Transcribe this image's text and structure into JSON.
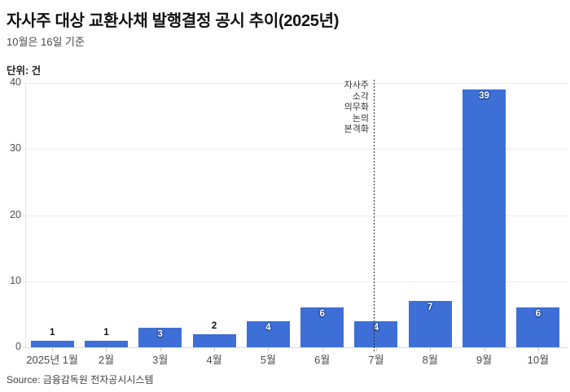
{
  "header": {
    "title": "자사주 대상 교환사채 발행결정 공시 추이(2025년)",
    "subtitle": "10월은 16일 기준"
  },
  "chart_data": {
    "type": "bar",
    "title": "자사주 대상 교환사채 발행결정 공시 추이(2025년)",
    "subtitle": "10월은 16일 기준",
    "unit_label": "단위: 건",
    "categories": [
      "2025년 1월",
      "2월",
      "3월",
      "4월",
      "5월",
      "6월",
      "7월",
      "8월",
      "9월",
      "10월"
    ],
    "values": [
      1,
      1,
      3,
      2,
      4,
      6,
      4,
      7,
      39,
      6
    ],
    "xlabel": "",
    "ylabel": "건",
    "ylim": [
      0,
      40
    ],
    "yticks": [
      0,
      10,
      20,
      30,
      40
    ],
    "grid": "horizontal-only",
    "legend": "none",
    "bar_color": "#3e6fd6",
    "annotation": {
      "lines": [
        "자사주",
        "소각",
        "의무화",
        "논의",
        "본격화"
      ],
      "anchor_category": "7월",
      "line_style": "vertical-dotted"
    }
  },
  "source": {
    "label": "Source: 금융감독원 전자공시시스템"
  }
}
